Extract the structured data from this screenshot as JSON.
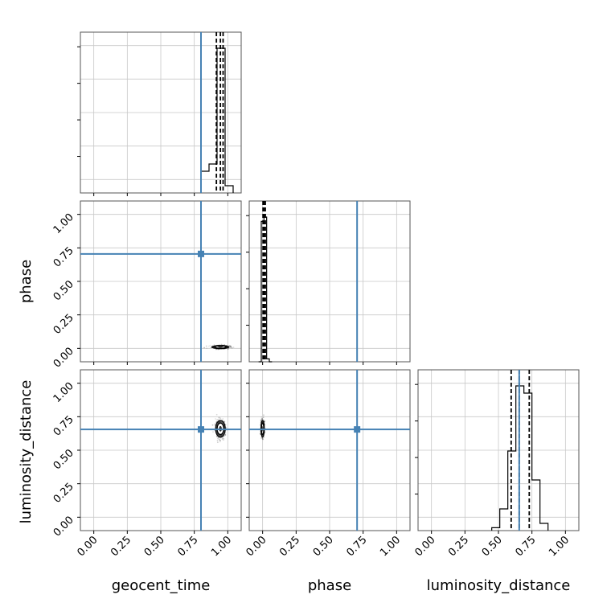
{
  "chart_data": {
    "type": "corner",
    "parameters": [
      "geocent_time",
      "phase",
      "luminosity_distance"
    ],
    "axis_range": [
      -0.1,
      1.1
    ],
    "tick_labels": [
      "0.00",
      "0.25",
      "0.50",
      "0.75",
      "1.00"
    ],
    "tick_values": [
      0.0,
      0.25,
      0.5,
      0.75,
      1.0
    ],
    "grid": true,
    "colors": {
      "truth": "#4682b4",
      "hist": "#000000",
      "quantile": "#000000",
      "grid": "#c8c8c8",
      "frame": "#555555"
    },
    "truths": {
      "geocent_time": 0.8,
      "phase": 0.705,
      "luminosity_distance": 0.655
    },
    "quantiles": {
      "geocent_time": [
        0.915,
        0.945,
        0.965
      ],
      "phase": [
        0.003,
        0.01,
        0.02
      ],
      "luminosity_distance": [
        0.595,
        0.655,
        0.73
      ]
    },
    "histograms": {
      "geocent_time": {
        "edges": [
          0.8,
          0.86,
          0.92,
          0.98,
          1.04
        ],
        "counts": [
          0.15,
          0.2,
          1.0,
          0.05
        ]
      },
      "phase": {
        "edges": [
          -0.03,
          -0.01,
          0.01,
          0.03,
          0.05,
          0.07
        ],
        "counts": [
          0.0,
          0.97,
          1.0,
          0.02,
          0.0
        ]
      },
      "luminosity_distance": {
        "edges": [
          0.45,
          0.51,
          0.57,
          0.63,
          0.69,
          0.75,
          0.81,
          0.87
        ],
        "counts": [
          0.02,
          0.15,
          0.55,
          1.0,
          0.95,
          0.35,
          0.05
        ]
      }
    },
    "density_2d": {
      "phase_vs_geocent_time": {
        "x_center": 0.945,
        "y_center": 0.01,
        "x_spread": 0.06,
        "y_spread": 0.012
      },
      "luminosity_distance_vs_geocent_time": {
        "x_center": 0.945,
        "y_center": 0.66,
        "x_spread": 0.035,
        "y_spread": 0.06
      },
      "luminosity_distance_vs_phase": {
        "x_center": 0.0,
        "y_center": 0.66,
        "x_spread": 0.012,
        "y_spread": 0.06
      }
    }
  }
}
